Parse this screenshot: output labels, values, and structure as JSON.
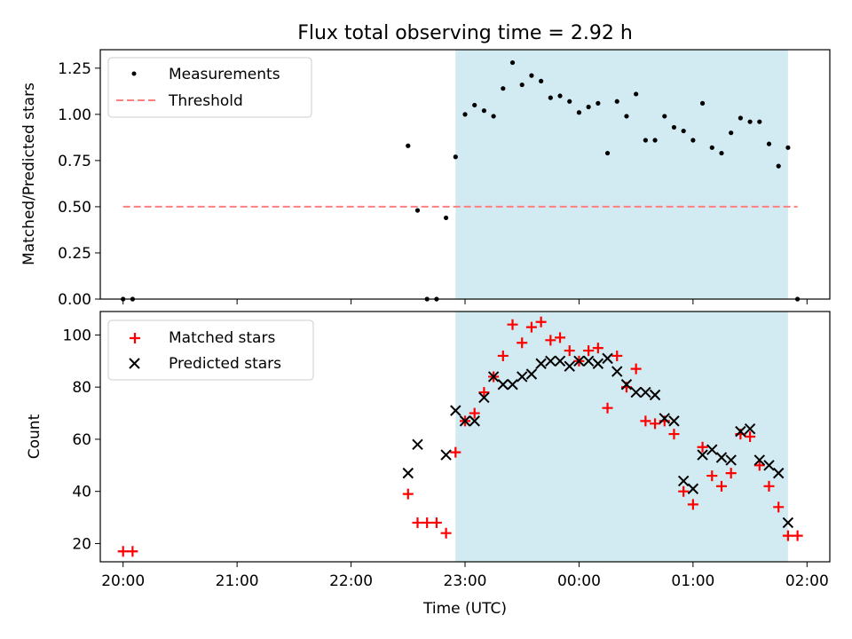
{
  "title": "Flux total observing time = 2.92 h",
  "colors": {
    "observing_window": "#add8e6",
    "measurements": "#000000",
    "threshold": "#ff7f7f",
    "matched": "#ff0000",
    "predicted": "#000000"
  },
  "chart_data": [
    {
      "type": "scatter",
      "panel": "top",
      "title": "Flux total observing time = 2.92 h",
      "xlabel": "",
      "ylabel": "Matched/Predicted stars",
      "ylim": [
        0,
        1.35
      ],
      "xlim": [
        "19:48",
        "02:12"
      ],
      "yticks": [
        "0.00",
        "0.25",
        "0.50",
        "0.75",
        "1.00",
        "1.25"
      ],
      "ytick_values": [
        0,
        0.25,
        0.5,
        0.75,
        1.0,
        1.25
      ],
      "shaded_interval": [
        "22:55",
        "01:50"
      ],
      "legend_position": "upper-left",
      "series": [
        {
          "name": "Measurements",
          "style": "points",
          "x": [
            "20:00",
            "20:05",
            "22:30",
            "22:35",
            "22:40",
            "22:45",
            "22:50",
            "22:55",
            "23:00",
            "23:05",
            "23:10",
            "23:15",
            "23:20",
            "23:25",
            "23:30",
            "23:35",
            "23:40",
            "23:45",
            "23:50",
            "23:55",
            "00:00",
            "00:05",
            "00:10",
            "00:15",
            "00:20",
            "00:25",
            "00:30",
            "00:35",
            "00:40",
            "00:45",
            "00:50",
            "00:55",
            "01:00",
            "01:05",
            "01:10",
            "01:15",
            "01:20",
            "01:25",
            "01:30",
            "01:35",
            "01:40",
            "01:45",
            "01:50",
            "01:55"
          ],
          "y": [
            0.0,
            0.0,
            0.83,
            0.48,
            0.0,
            0.0,
            0.44,
            0.77,
            1.0,
            1.05,
            1.02,
            0.99,
            1.14,
            1.28,
            1.16,
            1.21,
            1.18,
            1.09,
            1.1,
            1.07,
            1.01,
            1.04,
            1.06,
            0.79,
            1.07,
            0.99,
            1.11,
            0.86,
            0.86,
            0.99,
            0.93,
            0.91,
            0.86,
            1.06,
            0.82,
            0.79,
            0.9,
            0.98,
            0.96,
            0.96,
            0.84,
            0.72,
            0.82,
            0.0
          ]
        },
        {
          "name": "Threshold",
          "style": "dashed-line",
          "x": [
            "20:00",
            "01:55"
          ],
          "y": [
            0.5,
            0.5
          ]
        }
      ]
    },
    {
      "type": "scatter",
      "panel": "bottom",
      "xlabel": "Time (UTC)",
      "ylabel": "Count",
      "ylim": [
        13,
        109
      ],
      "xlim": [
        "19:48",
        "02:12"
      ],
      "xticks": [
        "20:00",
        "21:00",
        "22:00",
        "23:00",
        "00:00",
        "01:00",
        "02:00"
      ],
      "yticks": [
        "20",
        "40",
        "60",
        "80",
        "100"
      ],
      "ytick_values": [
        20,
        40,
        60,
        80,
        100
      ],
      "shaded_interval": [
        "22:55",
        "01:50"
      ],
      "legend_position": "upper-left",
      "series": [
        {
          "name": "Matched stars",
          "marker": "+",
          "x": [
            "20:00",
            "20:05",
            "22:30",
            "22:35",
            "22:40",
            "22:45",
            "22:50",
            "22:55",
            "23:00",
            "23:05",
            "23:10",
            "23:15",
            "23:20",
            "23:25",
            "23:30",
            "23:35",
            "23:40",
            "23:45",
            "23:50",
            "23:55",
            "00:00",
            "00:05",
            "00:10",
            "00:15",
            "00:20",
            "00:25",
            "00:30",
            "00:35",
            "00:40",
            "00:45",
            "00:50",
            "00:55",
            "01:00",
            "01:05",
            "01:10",
            "01:15",
            "01:20",
            "01:25",
            "01:30",
            "01:35",
            "01:40",
            "01:45",
            "01:50",
            "01:55"
          ],
          "y": [
            17,
            17,
            39,
            28,
            28,
            28,
            24,
            55,
            67,
            70,
            78,
            84,
            92,
            104,
            97,
            103,
            105,
            98,
            99,
            94,
            90,
            94,
            95,
            72,
            92,
            80,
            87,
            67,
            66,
            67,
            62,
            40,
            35,
            57,
            46,
            42,
            47,
            62,
            61,
            50,
            42,
            34,
            23,
            23
          ]
        },
        {
          "name": "Predicted stars",
          "marker": "x",
          "x": [
            "22:30",
            "22:35",
            "22:50",
            "22:55",
            "23:00",
            "23:05",
            "23:10",
            "23:15",
            "23:20",
            "23:25",
            "23:30",
            "23:35",
            "23:40",
            "23:45",
            "23:50",
            "23:55",
            "00:00",
            "00:05",
            "00:10",
            "00:15",
            "00:20",
            "00:25",
            "00:30",
            "00:35",
            "00:40",
            "00:45",
            "00:50",
            "00:55",
            "01:00",
            "01:05",
            "01:10",
            "01:15",
            "01:20",
            "01:25",
            "01:30",
            "01:35",
            "01:40",
            "01:45",
            "01:50"
          ],
          "y": [
            47,
            58,
            54,
            71,
            67,
            67,
            76,
            84,
            81,
            81,
            84,
            85,
            89,
            90,
            90,
            88,
            90,
            90,
            89,
            91,
            86,
            81,
            78,
            78,
            77,
            68,
            67,
            44,
            41,
            54,
            56,
            53,
            52,
            63,
            64,
            52,
            50,
            47,
            28
          ]
        }
      ]
    }
  ]
}
